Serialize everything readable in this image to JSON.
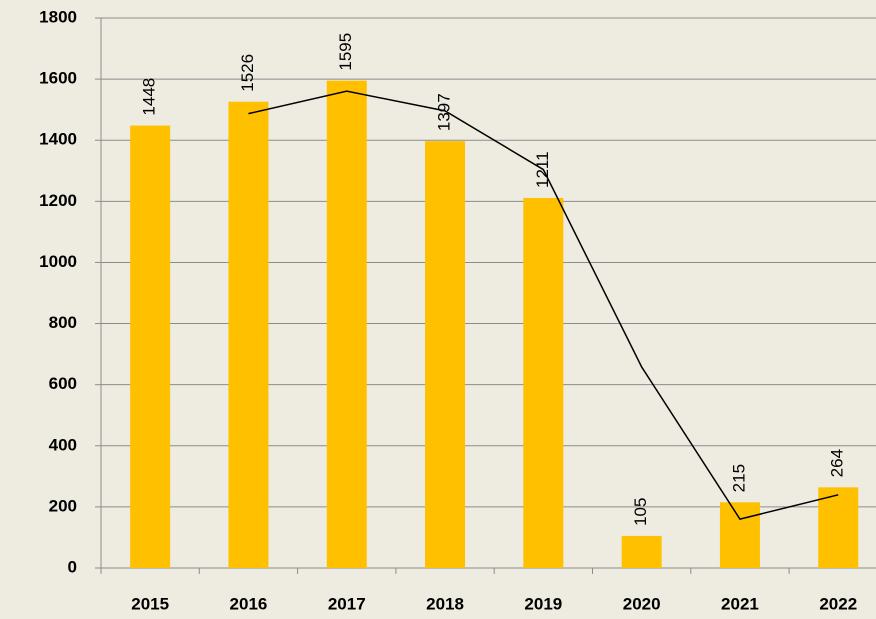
{
  "chart_data": {
    "type": "bar",
    "categories": [
      "2015",
      "2016",
      "2017",
      "2018",
      "2019",
      "2020",
      "2021",
      "2022"
    ],
    "series": [
      {
        "type": "bar",
        "color": "#ffc000",
        "values": [
          1448,
          1526,
          1595,
          1397,
          1211,
          105,
          215,
          264
        ]
      },
      {
        "type": "line",
        "color": "#000000",
        "values": [
          null,
          1487,
          1560.5,
          1496,
          1304,
          658,
          160,
          239.5
        ]
      }
    ],
    "ylim": [
      0,
      1800
    ],
    "yticks": [
      0,
      200,
      400,
      600,
      800,
      1000,
      1200,
      1400,
      1600,
      1800
    ],
    "grid": true
  }
}
